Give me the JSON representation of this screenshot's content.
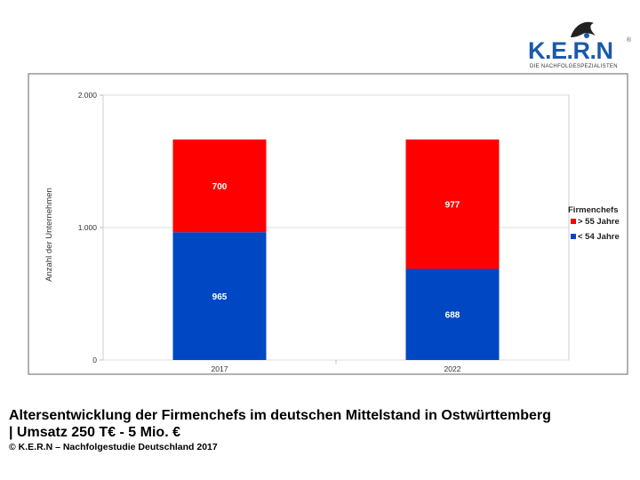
{
  "logo": {
    "name": "K.E.R.N",
    "tagline": "DIE NACHFOLGESPEZIALISTEN",
    "registered": "®"
  },
  "caption": {
    "line1": "Altersentwicklung der Firmenchefs im deutschen Mittelstand in Ostwürttemberg",
    "line2": "| Umsatz 250 T€ - 5 Mio. €",
    "source": "© K.E.R.N – Nachfolgestudie Deutschland 2017"
  },
  "chart_data": {
    "type": "bar",
    "stacked": true,
    "categories": [
      "2017",
      "2022"
    ],
    "series": [
      {
        "name": "< 54 Jahre",
        "values": [
          965,
          688
        ],
        "color": "#0047c4"
      },
      {
        "name": "> 55 Jahre",
        "values": [
          700,
          977
        ],
        "color": "#ff0000"
      }
    ],
    "ylabel": "Anzahl der Unternehmen",
    "ylim": [
      0,
      2000
    ],
    "yticks": [
      0,
      1000,
      2000
    ],
    "ytick_labels": [
      "0",
      "1.000",
      "2.000"
    ],
    "grid": true,
    "legend": {
      "title": "Firmenchefs",
      "placement": "right",
      "order": [
        "> 55 Jahre",
        "< 54 Jahre"
      ]
    }
  }
}
